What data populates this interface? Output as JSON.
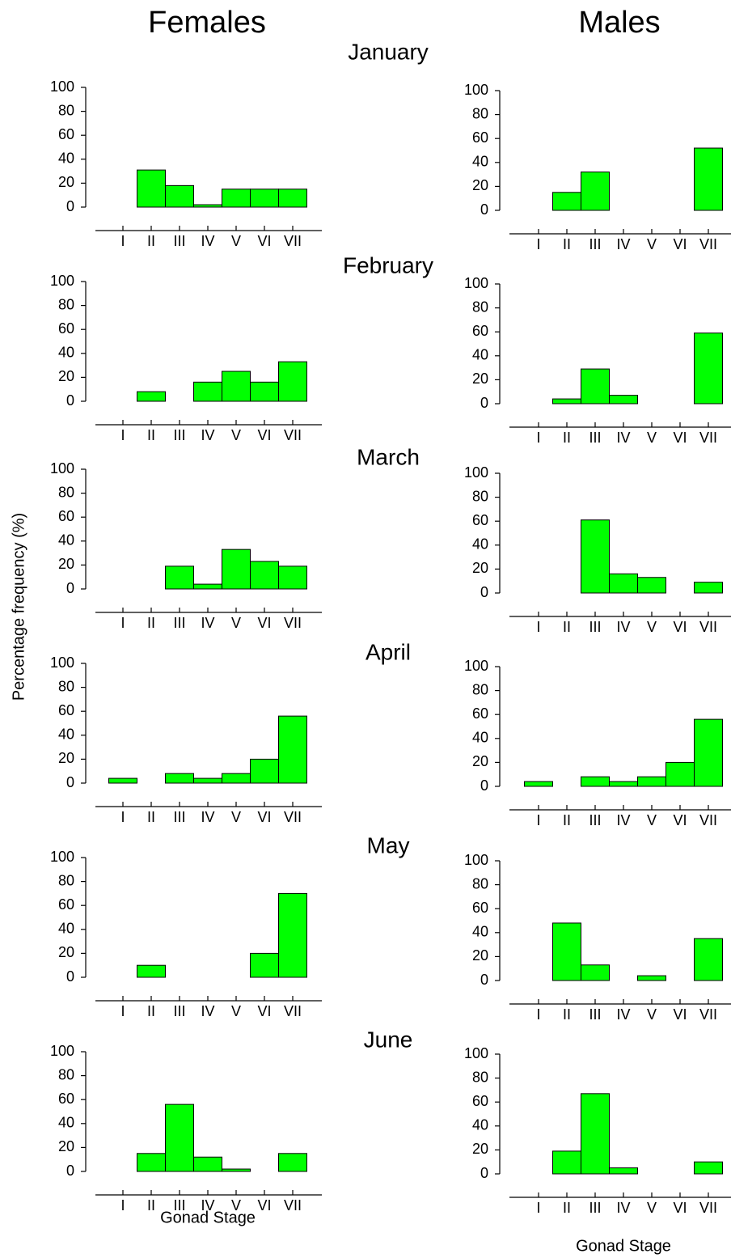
{
  "column_titles": [
    "Females",
    "Males"
  ],
  "month_titles": [
    "January",
    "February",
    "March",
    "April",
    "May",
    "June"
  ],
  "y_axis_label": "Percentage frequency (%)",
  "x_axis_label": "Gonad Stage",
  "chart_data": [
    {
      "type": "bar",
      "categories": [
        "I",
        "II",
        "III",
        "IV",
        "V",
        "VI",
        "VII"
      ],
      "values": [
        0,
        31,
        18,
        2,
        15,
        15,
        15
      ],
      "color": "#00ff00",
      "ylim": [
        0,
        100
      ],
      "yticks": [
        0,
        20,
        40,
        60,
        80,
        100
      ]
    },
    {
      "type": "bar",
      "categories": [
        "I",
        "II",
        "III",
        "IV",
        "V",
        "VI",
        "VII"
      ],
      "values": [
        0,
        15,
        32,
        0,
        0,
        0,
        52
      ],
      "color": "#00ff00",
      "ylim": [
        0,
        100
      ],
      "yticks": [
        0,
        20,
        40,
        60,
        80,
        100
      ]
    },
    {
      "type": "bar",
      "categories": [
        "I",
        "II",
        "III",
        "IV",
        "V",
        "VI",
        "VII"
      ],
      "values": [
        0,
        8,
        0,
        16,
        25,
        16,
        33
      ],
      "color": "#00ff00",
      "ylim": [
        0,
        100
      ],
      "yticks": [
        0,
        20,
        40,
        60,
        80,
        100
      ]
    },
    {
      "type": "bar",
      "categories": [
        "I",
        "II",
        "III",
        "IV",
        "V",
        "VI",
        "VII"
      ],
      "values": [
        0,
        4,
        29,
        7,
        0,
        0,
        59
      ],
      "color": "#00ff00",
      "ylim": [
        0,
        100
      ],
      "yticks": [
        0,
        20,
        40,
        60,
        80,
        100
      ]
    },
    {
      "type": "bar",
      "categories": [
        "I",
        "II",
        "III",
        "IV",
        "V",
        "VI",
        "VII"
      ],
      "values": [
        0,
        0,
        19,
        4,
        33,
        23,
        19
      ],
      "color": "#00ff00",
      "ylim": [
        0,
        100
      ],
      "yticks": [
        0,
        20,
        40,
        60,
        80,
        100
      ]
    },
    {
      "type": "bar",
      "categories": [
        "I",
        "II",
        "III",
        "IV",
        "V",
        "VI",
        "VII"
      ],
      "values": [
        0,
        0,
        61,
        16,
        13,
        0,
        9
      ],
      "color": "#00ff00",
      "ylim": [
        0,
        100
      ],
      "yticks": [
        0,
        20,
        40,
        60,
        80,
        100
      ]
    },
    {
      "type": "bar",
      "categories": [
        "I",
        "II",
        "III",
        "IV",
        "V",
        "VI",
        "VII"
      ],
      "values": [
        4,
        0,
        8,
        4,
        8,
        20,
        56
      ],
      "color": "#00ff00",
      "ylim": [
        0,
        100
      ],
      "yticks": [
        0,
        20,
        40,
        60,
        80,
        100
      ]
    },
    {
      "type": "bar",
      "categories": [
        "I",
        "II",
        "III",
        "IV",
        "V",
        "VI",
        "VII"
      ],
      "values": [
        4,
        0,
        8,
        4,
        8,
        20,
        56
      ],
      "color": "#00ff00",
      "ylim": [
        0,
        100
      ],
      "yticks": [
        0,
        20,
        40,
        60,
        80,
        100
      ]
    },
    {
      "type": "bar",
      "categories": [
        "I",
        "II",
        "III",
        "IV",
        "V",
        "VI",
        "VII"
      ],
      "values": [
        0,
        10,
        0,
        0,
        0,
        20,
        70
      ],
      "color": "#00ff00",
      "ylim": [
        0,
        100
      ],
      "yticks": [
        0,
        20,
        40,
        60,
        80,
        100
      ]
    },
    {
      "type": "bar",
      "categories": [
        "I",
        "II",
        "III",
        "IV",
        "V",
        "VI",
        "VII"
      ],
      "values": [
        0,
        48,
        13,
        0,
        4,
        0,
        35
      ],
      "color": "#00ff00",
      "ylim": [
        0,
        100
      ],
      "yticks": [
        0,
        20,
        40,
        60,
        80,
        100
      ]
    },
    {
      "type": "bar",
      "categories": [
        "I",
        "II",
        "III",
        "IV",
        "V",
        "VI",
        "VII"
      ],
      "values": [
        0,
        15,
        56,
        12,
        2,
        0,
        15
      ],
      "color": "#00ff00",
      "ylim": [
        0,
        100
      ],
      "yticks": [
        0,
        20,
        40,
        60,
        80,
        100
      ]
    },
    {
      "type": "bar",
      "categories": [
        "I",
        "II",
        "III",
        "IV",
        "V",
        "VI",
        "VII"
      ],
      "values": [
        0,
        19,
        67,
        5,
        0,
        0,
        10
      ],
      "color": "#00ff00",
      "ylim": [
        0,
        100
      ],
      "yticks": [
        0,
        20,
        40,
        60,
        80,
        100
      ]
    }
  ]
}
